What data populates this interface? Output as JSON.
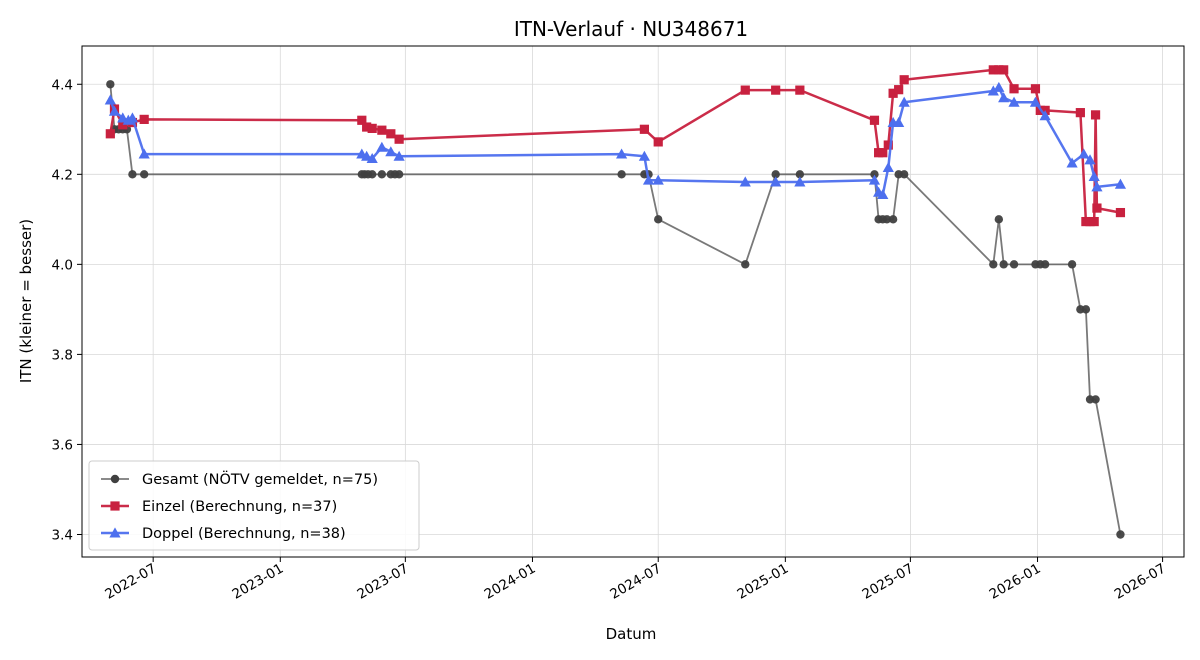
{
  "chart_data": {
    "type": "line",
    "title": "ITN-Verlauf · NU348671",
    "xlabel": "Datum",
    "ylabel": "ITN  (kleiner = besser)",
    "xlim": [
      "2022-03-20",
      "2026-08-01"
    ],
    "ylim": [
      3.35,
      4.485
    ],
    "x_ticks": [
      "2022-07-01",
      "2023-01-01",
      "2023-07-01",
      "2024-01-01",
      "2024-07-01",
      "2025-01-01",
      "2025-07-01",
      "2026-01-01",
      "2026-07-01"
    ],
    "x_tick_labels": [
      "2022-07",
      "2023-01",
      "2023-07",
      "2024-01",
      "2024-07",
      "2025-01",
      "2025-07",
      "2026-01",
      "2026-07"
    ],
    "y_ticks": [
      3.4,
      3.6,
      3.8,
      4.0,
      4.2,
      4.4
    ],
    "y_tick_labels": [
      "3.4",
      "3.6",
      "3.8",
      "4.0",
      "4.2",
      "4.4"
    ],
    "grid": true,
    "legend_position": "lower-left",
    "series": [
      {
        "name": "Gesamt (NÖTV gemeldet, n=75)",
        "color": "#404040",
        "marker": "circle",
        "points": [
          [
            "2022-04-30",
            4.4
          ],
          [
            "2022-05-06",
            4.3
          ],
          [
            "2022-05-12",
            4.3
          ],
          [
            "2022-05-18",
            4.3
          ],
          [
            "2022-05-24",
            4.3
          ],
          [
            "2022-06-01",
            4.2
          ],
          [
            "2022-06-18",
            4.2
          ],
          [
            "2023-04-29",
            4.2
          ],
          [
            "2023-05-03",
            4.2
          ],
          [
            "2023-05-08",
            4.2
          ],
          [
            "2023-05-14",
            4.2
          ],
          [
            "2023-05-28",
            4.2
          ],
          [
            "2023-06-10",
            4.2
          ],
          [
            "2023-06-16",
            4.2
          ],
          [
            "2023-06-22",
            4.2
          ],
          [
            "2024-05-09",
            4.2
          ],
          [
            "2024-06-11",
            4.2
          ],
          [
            "2024-06-17",
            4.2
          ],
          [
            "2024-07-01",
            4.1
          ],
          [
            "2024-11-04",
            4.0
          ],
          [
            "2024-12-18",
            4.2
          ],
          [
            "2025-01-22",
            4.2
          ],
          [
            "2025-05-10",
            4.2
          ],
          [
            "2025-05-16",
            4.1
          ],
          [
            "2025-05-22",
            4.1
          ],
          [
            "2025-05-28",
            4.1
          ],
          [
            "2025-06-06",
            4.1
          ],
          [
            "2025-06-14",
            4.2
          ],
          [
            "2025-06-22",
            4.2
          ],
          [
            "2025-10-29",
            4.0
          ],
          [
            "2025-11-06",
            4.1
          ],
          [
            "2025-11-13",
            4.0
          ],
          [
            "2025-11-28",
            4.0
          ],
          [
            "2025-12-29",
            4.0
          ],
          [
            "2026-01-05",
            4.0
          ],
          [
            "2026-01-12",
            4.0
          ],
          [
            "2026-02-20",
            4.0
          ],
          [
            "2026-03-04",
            3.9
          ],
          [
            "2026-03-12",
            3.9
          ],
          [
            "2026-03-18",
            3.7
          ],
          [
            "2026-03-26",
            3.7
          ],
          [
            "2026-05-01",
            3.4
          ]
        ]
      },
      {
        "name": "Einzel (Berechnung, n=37)",
        "color": "#c8213f",
        "marker": "square",
        "points": [
          [
            "2022-04-30",
            4.29
          ],
          [
            "2022-05-06",
            4.345
          ],
          [
            "2022-05-18",
            4.31
          ],
          [
            "2022-06-01",
            4.315
          ],
          [
            "2022-06-18",
            4.322
          ],
          [
            "2023-04-29",
            4.32
          ],
          [
            "2023-05-06",
            4.305
          ],
          [
            "2023-05-14",
            4.302
          ],
          [
            "2023-05-28",
            4.298
          ],
          [
            "2023-06-10",
            4.29
          ],
          [
            "2023-06-22",
            4.278
          ],
          [
            "2024-06-11",
            4.3
          ],
          [
            "2024-07-01",
            4.272
          ],
          [
            "2024-11-04",
            4.387
          ],
          [
            "2024-12-18",
            4.387
          ],
          [
            "2025-01-22",
            4.387
          ],
          [
            "2025-05-10",
            4.32
          ],
          [
            "2025-05-16",
            4.248
          ],
          [
            "2025-05-22",
            4.248
          ],
          [
            "2025-05-30",
            4.265
          ],
          [
            "2025-06-06",
            4.38
          ],
          [
            "2025-06-14",
            4.388
          ],
          [
            "2025-06-22",
            4.41
          ],
          [
            "2025-10-29",
            4.432
          ],
          [
            "2025-11-06",
            4.432
          ],
          [
            "2025-11-13",
            4.432
          ],
          [
            "2025-11-28",
            4.39
          ],
          [
            "2025-12-29",
            4.39
          ],
          [
            "2026-01-05",
            4.342
          ],
          [
            "2026-01-12",
            4.342
          ],
          [
            "2026-03-04",
            4.337
          ],
          [
            "2026-03-12",
            4.095
          ],
          [
            "2026-03-18",
            4.095
          ],
          [
            "2026-03-24",
            4.095
          ],
          [
            "2026-03-26",
            4.332
          ],
          [
            "2026-03-28",
            4.125
          ],
          [
            "2026-05-01",
            4.115
          ]
        ]
      },
      {
        "name": "Doppel (Berechnung, n=38)",
        "color": "#4d6fee",
        "marker": "triangle",
        "points": [
          [
            "2022-04-30",
            4.365
          ],
          [
            "2022-05-06",
            4.34
          ],
          [
            "2022-05-18",
            4.325
          ],
          [
            "2022-05-26",
            4.32
          ],
          [
            "2022-06-01",
            4.325
          ],
          [
            "2022-06-18",
            4.245
          ],
          [
            "2023-04-29",
            4.245
          ],
          [
            "2023-05-06",
            4.24
          ],
          [
            "2023-05-14",
            4.235
          ],
          [
            "2023-05-28",
            4.26
          ],
          [
            "2023-06-10",
            4.25
          ],
          [
            "2023-06-22",
            4.24
          ],
          [
            "2024-05-09",
            4.245
          ],
          [
            "2024-06-11",
            4.24
          ],
          [
            "2024-06-17",
            4.187
          ],
          [
            "2024-07-01",
            4.187
          ],
          [
            "2024-11-04",
            4.183
          ],
          [
            "2024-12-18",
            4.183
          ],
          [
            "2025-01-22",
            4.183
          ],
          [
            "2025-05-10",
            4.187
          ],
          [
            "2025-05-16",
            4.16
          ],
          [
            "2025-05-22",
            4.155
          ],
          [
            "2025-05-30",
            4.215
          ],
          [
            "2025-06-06",
            4.315
          ],
          [
            "2025-06-14",
            4.315
          ],
          [
            "2025-06-22",
            4.36
          ],
          [
            "2025-10-29",
            4.385
          ],
          [
            "2025-11-06",
            4.393
          ],
          [
            "2025-11-13",
            4.37
          ],
          [
            "2025-11-28",
            4.36
          ],
          [
            "2025-12-29",
            4.36
          ],
          [
            "2026-01-12",
            4.33
          ],
          [
            "2026-02-20",
            4.225
          ],
          [
            "2026-03-09",
            4.245
          ],
          [
            "2026-03-18",
            4.232
          ],
          [
            "2026-03-24",
            4.195
          ],
          [
            "2026-03-28",
            4.172
          ],
          [
            "2026-05-01",
            4.178
          ]
        ]
      }
    ]
  }
}
